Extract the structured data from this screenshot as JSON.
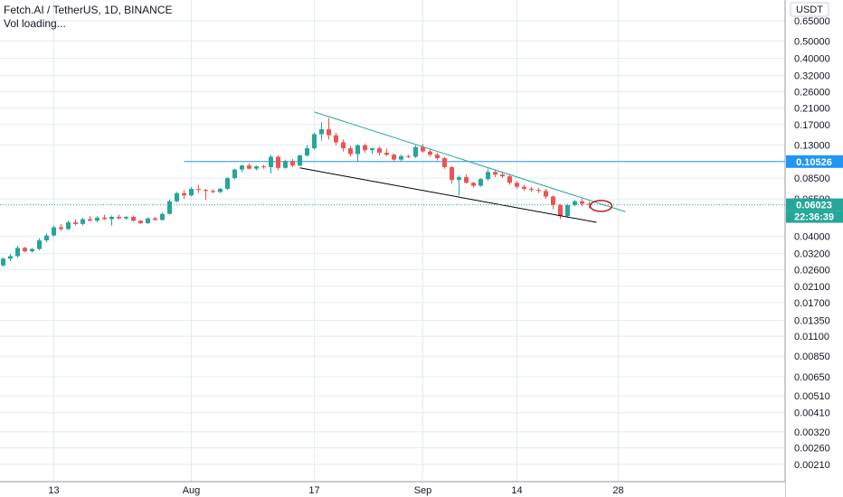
{
  "header": {
    "symbol_title": "Fetch.AI / TetherUS, 1D, BINANCE",
    "vol_status": "Vol loading..."
  },
  "currency_button": "USDT",
  "price_axis": {
    "scale": "log",
    "labels": [
      "0.65000",
      "0.50000",
      "0.40000",
      "0.32000",
      "0.26000",
      "0.21000",
      "0.17000",
      "0.13000",
      "0.08500",
      "0.06500",
      "0.04000",
      "0.03200",
      "0.02600",
      "0.02100",
      "0.01700",
      "0.01350",
      "0.01100",
      "0.00850",
      "0.00650",
      "0.00510",
      "0.00410",
      "0.00320",
      "0.00260",
      "0.00210"
    ],
    "values": [
      0.65,
      0.5,
      0.4,
      0.32,
      0.26,
      0.21,
      0.17,
      0.13,
      0.085,
      0.065,
      0.04,
      0.032,
      0.026,
      0.021,
      0.017,
      0.0135,
      0.011,
      0.0085,
      0.0065,
      0.0051,
      0.0041,
      0.0032,
      0.0026,
      0.0021
    ]
  },
  "time_axis": {
    "labels": [
      "13",
      "Aug",
      "17",
      "Sep",
      "14",
      "28"
    ]
  },
  "horizontal_level": {
    "label": "0.10526",
    "value": 0.10526,
    "color": "#2196f3"
  },
  "last_price": {
    "label": "0.06023",
    "value": 0.06023,
    "color": "#26a69a"
  },
  "countdown": {
    "label": "22:36:39"
  },
  "colors": {
    "up": "#26a69a",
    "down": "#ef5350",
    "grid": "#e1ecf2",
    "trend_upper": "#26a69a",
    "trend_lower": "#000000",
    "circle": "#b71c1c"
  },
  "chart_data": {
    "type": "candlestick",
    "interval": "1D",
    "exchange": "BINANCE",
    "y_scale": "log",
    "ylim": [
      0.00168,
      0.85
    ],
    "candles": [
      [
        0.0275,
        0.0305,
        0.027,
        0.03
      ],
      [
        0.03,
        0.032,
        0.029,
        0.031
      ],
      [
        0.031,
        0.0355,
        0.0305,
        0.0345
      ],
      [
        0.0345,
        0.035,
        0.0325,
        0.033
      ],
      [
        0.033,
        0.0345,
        0.0325,
        0.034
      ],
      [
        0.034,
        0.039,
        0.0335,
        0.038
      ],
      [
        0.038,
        0.0415,
        0.037,
        0.0405
      ],
      [
        0.0405,
        0.046,
        0.04,
        0.045
      ],
      [
        0.045,
        0.047,
        0.043,
        0.044
      ],
      [
        0.044,
        0.049,
        0.0435,
        0.048
      ],
      [
        0.048,
        0.05,
        0.046,
        0.047
      ],
      [
        0.047,
        0.051,
        0.046,
        0.05
      ],
      [
        0.05,
        0.052,
        0.0485,
        0.049
      ],
      [
        0.049,
        0.052,
        0.048,
        0.051
      ],
      [
        0.051,
        0.053,
        0.0495,
        0.05
      ],
      [
        0.05,
        0.0525,
        0.046,
        0.0515
      ],
      [
        0.0515,
        0.053,
        0.05,
        0.0505
      ],
      [
        0.0505,
        0.052,
        0.0495,
        0.0515
      ],
      [
        0.0515,
        0.0525,
        0.0485,
        0.049
      ],
      [
        0.049,
        0.0495,
        0.047,
        0.0475
      ],
      [
        0.0475,
        0.051,
        0.047,
        0.0505
      ],
      [
        0.0505,
        0.0515,
        0.049,
        0.0495
      ],
      [
        0.0495,
        0.0545,
        0.049,
        0.0535
      ],
      [
        0.0535,
        0.0645,
        0.053,
        0.063
      ],
      [
        0.063,
        0.071,
        0.062,
        0.07
      ],
      [
        0.07,
        0.073,
        0.065,
        0.068
      ],
      [
        0.068,
        0.076,
        0.067,
        0.074
      ],
      [
        0.074,
        0.078,
        0.07,
        0.073
      ],
      [
        0.073,
        0.074,
        0.064,
        0.072
      ],
      [
        0.072,
        0.0735,
        0.07,
        0.071
      ],
      [
        0.071,
        0.075,
        0.07,
        0.074
      ],
      [
        0.074,
        0.086,
        0.073,
        0.085
      ],
      [
        0.085,
        0.096,
        0.084,
        0.095
      ],
      [
        0.095,
        0.101,
        0.092,
        0.1
      ],
      [
        0.1,
        0.103,
        0.095,
        0.096
      ],
      [
        0.096,
        0.1,
        0.094,
        0.099
      ],
      [
        0.099,
        0.101,
        0.096,
        0.098
      ],
      [
        0.098,
        0.115,
        0.09,
        0.112
      ],
      [
        0.112,
        0.114,
        0.094,
        0.097
      ],
      [
        0.097,
        0.108,
        0.096,
        0.106
      ],
      [
        0.106,
        0.109,
        0.098,
        0.1
      ],
      [
        0.1,
        0.115,
        0.099,
        0.114
      ],
      [
        0.114,
        0.13,
        0.112,
        0.125
      ],
      [
        0.125,
        0.153,
        0.123,
        0.15
      ],
      [
        0.15,
        0.175,
        0.138,
        0.16
      ],
      [
        0.16,
        0.185,
        0.14,
        0.148
      ],
      [
        0.148,
        0.153,
        0.13,
        0.135
      ],
      [
        0.135,
        0.14,
        0.12,
        0.125
      ],
      [
        0.125,
        0.129,
        0.112,
        0.116
      ],
      [
        0.116,
        0.132,
        0.105,
        0.13
      ],
      [
        0.13,
        0.133,
        0.118,
        0.122
      ],
      [
        0.122,
        0.126,
        0.116,
        0.125
      ],
      [
        0.125,
        0.128,
        0.114,
        0.118
      ],
      [
        0.118,
        0.124,
        0.113,
        0.115
      ],
      [
        0.115,
        0.117,
        0.106,
        0.108
      ],
      [
        0.108,
        0.115,
        0.106,
        0.113
      ],
      [
        0.113,
        0.115,
        0.11,
        0.112
      ],
      [
        0.112,
        0.13,
        0.11,
        0.127
      ],
      [
        0.127,
        0.132,
        0.118,
        0.12
      ],
      [
        0.12,
        0.123,
        0.112,
        0.115
      ],
      [
        0.115,
        0.118,
        0.107,
        0.11
      ],
      [
        0.11,
        0.112,
        0.096,
        0.098
      ],
      [
        0.098,
        0.099,
        0.079,
        0.083
      ],
      [
        0.083,
        0.088,
        0.068,
        0.086
      ],
      [
        0.086,
        0.089,
        0.079,
        0.08
      ],
      [
        0.08,
        0.081,
        0.075,
        0.077
      ],
      [
        0.077,
        0.085,
        0.076,
        0.084
      ],
      [
        0.084,
        0.096,
        0.082,
        0.092
      ],
      [
        0.092,
        0.095,
        0.086,
        0.089
      ],
      [
        0.089,
        0.092,
        0.085,
        0.087
      ],
      [
        0.087,
        0.089,
        0.078,
        0.08
      ],
      [
        0.08,
        0.082,
        0.074,
        0.076
      ],
      [
        0.076,
        0.078,
        0.072,
        0.074
      ],
      [
        0.074,
        0.076,
        0.071,
        0.073
      ],
      [
        0.073,
        0.075,
        0.07,
        0.072
      ],
      [
        0.072,
        0.074,
        0.065,
        0.067
      ],
      [
        0.067,
        0.068,
        0.057,
        0.06
      ],
      [
        0.06,
        0.061,
        0.05,
        0.052
      ],
      [
        0.052,
        0.061,
        0.051,
        0.06
      ],
      [
        0.06,
        0.064,
        0.059,
        0.063
      ],
      [
        0.063,
        0.065,
        0.059,
        0.061
      ],
      [
        0.061,
        0.063,
        0.0575,
        0.0602
      ]
    ],
    "horizontal_lines": [
      0.10526
    ],
    "trendlines": [
      {
        "name": "upper",
        "from": [
          43,
          0.2
        ],
        "to": [
          86,
          0.055
        ]
      },
      {
        "name": "lower",
        "from": [
          41,
          0.097
        ],
        "to": [
          82,
          0.048
        ]
      }
    ],
    "highlight_circle": {
      "at": [
        81,
        0.06
      ]
    }
  }
}
